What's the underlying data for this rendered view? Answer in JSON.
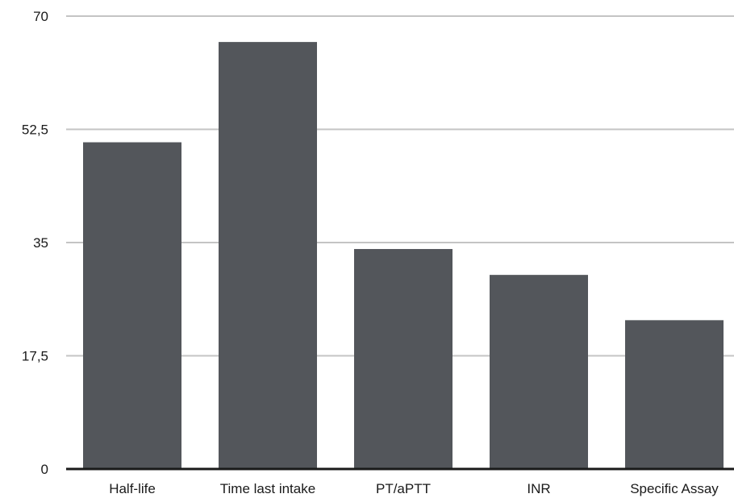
{
  "chart_data": {
    "type": "bar",
    "categories": [
      "Half-life",
      "Time last intake",
      "PT/aPTT",
      "INR",
      "Specific Assay"
    ],
    "values": [
      50.5,
      66,
      34,
      30,
      23
    ],
    "ylim": [
      0,
      70
    ],
    "yticks": [
      0,
      17.5,
      35,
      52.5,
      70
    ],
    "ytick_labels": [
      "0",
      "17,5",
      "35",
      "52,5",
      "70"
    ],
    "grid": true,
    "legend": "none",
    "bar_color": "#53565b",
    "grid_color": "#c4c4c4",
    "axis_color": "#1a1a1a"
  }
}
